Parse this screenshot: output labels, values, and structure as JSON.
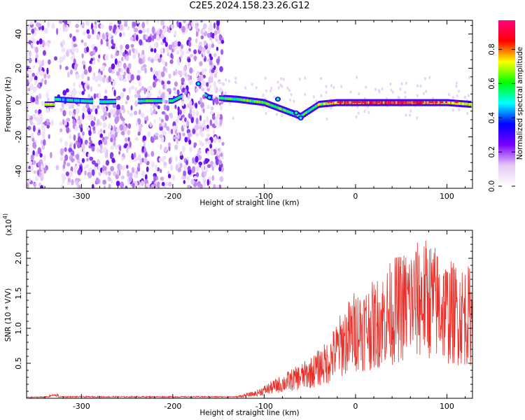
{
  "title": "C2E5.2024.158.23.26.G12",
  "chart_data": [
    {
      "type": "heatmap",
      "xlabel": "Height of straight line (km)",
      "ylabel": "Frequency (Hz)",
      "xlim": [
        -360,
        128
      ],
      "ylim": [
        -50,
        48
      ],
      "x_ticks": [
        -300,
        -200,
        -100,
        0,
        100
      ],
      "y_ticks": [
        -40,
        -20,
        0,
        20,
        40
      ],
      "colorbar": {
        "label": "Normalized spectral amplitude",
        "range": [
          0,
          0.97
        ],
        "ticks": [
          0.0,
          0.2,
          0.4,
          0.6,
          0.8
        ],
        "colormap": [
          "#ffffff",
          "#e6c8f5",
          "#7a00ff",
          "#0000ff",
          "#00ffff",
          "#00ff00",
          "#ffff00",
          "#ff0000",
          "#ff0080"
        ]
      },
      "description_points": [
        [
          -330,
          2,
          0.5
        ],
        [
          -300,
          1,
          0.45
        ],
        [
          -275,
          0.5,
          0.5
        ],
        [
          -225,
          1,
          0.55
        ],
        [
          -200,
          1,
          0.5
        ],
        [
          -175,
          8,
          0.45
        ],
        [
          -160,
          3,
          0.5
        ],
        [
          -130,
          2,
          0.55
        ],
        [
          -100,
          0,
          0.6
        ],
        [
          -80,
          -4,
          0.6
        ],
        [
          -60,
          -8,
          0.5
        ],
        [
          -40,
          -1,
          0.65
        ],
        [
          -20,
          0,
          0.8
        ],
        [
          0,
          0,
          0.85
        ],
        [
          50,
          0,
          0.9
        ],
        [
          100,
          0,
          0.75
        ],
        [
          125,
          -1,
          0.7
        ]
      ]
    },
    {
      "type": "line",
      "xlabel": "Height of straight line (km)",
      "ylabel": "SNR (10 * V/V)",
      "multiplier_label": "(x10",
      "multiplier_exp": "4",
      "xlim": [
        -360,
        128
      ],
      "ylim": [
        0,
        2.4
      ],
      "x_ticks": [
        -300,
        -200,
        -100,
        0,
        100
      ],
      "y_ticks": [
        "0.5",
        "1.0",
        "1.5",
        "2.0"
      ],
      "color": "#e8302a",
      "envelope": {
        "x": [
          -360,
          -330,
          -200,
          -130,
          -110,
          -90,
          -70,
          -50,
          -30,
          -15,
          0,
          20,
          40,
          60,
          80,
          100,
          128
        ],
        "y": [
          0.02,
          0.03,
          0.03,
          0.03,
          0.1,
          0.25,
          0.4,
          0.55,
          0.8,
          1.2,
          1.5,
          1.6,
          1.9,
          2.1,
          2.2,
          1.9,
          1.8
        ]
      }
    }
  ]
}
